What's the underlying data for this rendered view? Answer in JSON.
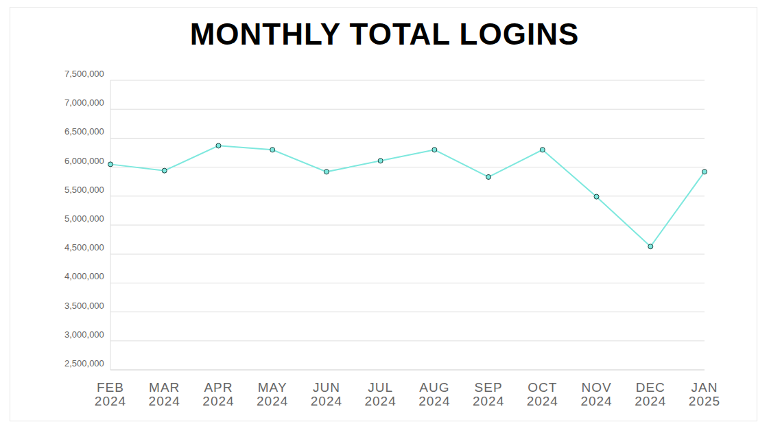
{
  "chart_data": {
    "type": "line",
    "title": "MONTHLY TOTAL LOGINS",
    "categories": [
      "FEB 2024",
      "MAR 2024",
      "APR 2024",
      "MAY 2024",
      "JUN 2024",
      "JUL 2024",
      "AUG 2024",
      "SEP 2024",
      "OCT 2024",
      "NOV 2024",
      "DEC 2024",
      "JAN 2025"
    ],
    "values": [
      6050000,
      5940000,
      6370000,
      6300000,
      5920000,
      6110000,
      6300000,
      5830000,
      6300000,
      5490000,
      4630000,
      5920000
    ],
    "color": "#7ee8de",
    "marker": "circle",
    "ylim": [
      2500000,
      7500000
    ],
    "yticks": [
      {
        "value": 2500000,
        "label": "2,500,000"
      },
      {
        "value": 3000000,
        "label": "3,000,000"
      },
      {
        "value": 3500000,
        "label": "3,500,000"
      },
      {
        "value": 4000000,
        "label": "4,000,000"
      },
      {
        "value": 4500000,
        "label": "4,500,000"
      },
      {
        "value": 5000000,
        "label": "5,000,000"
      },
      {
        "value": 5500000,
        "label": "5,500,000"
      },
      {
        "value": 6000000,
        "label": "6,000,000"
      },
      {
        "value": 6500000,
        "label": "6,500,000"
      },
      {
        "value": 7000000,
        "label": "7,000,000"
      },
      {
        "value": 7500000,
        "label": "7,500,000"
      }
    ],
    "grid": true
  }
}
